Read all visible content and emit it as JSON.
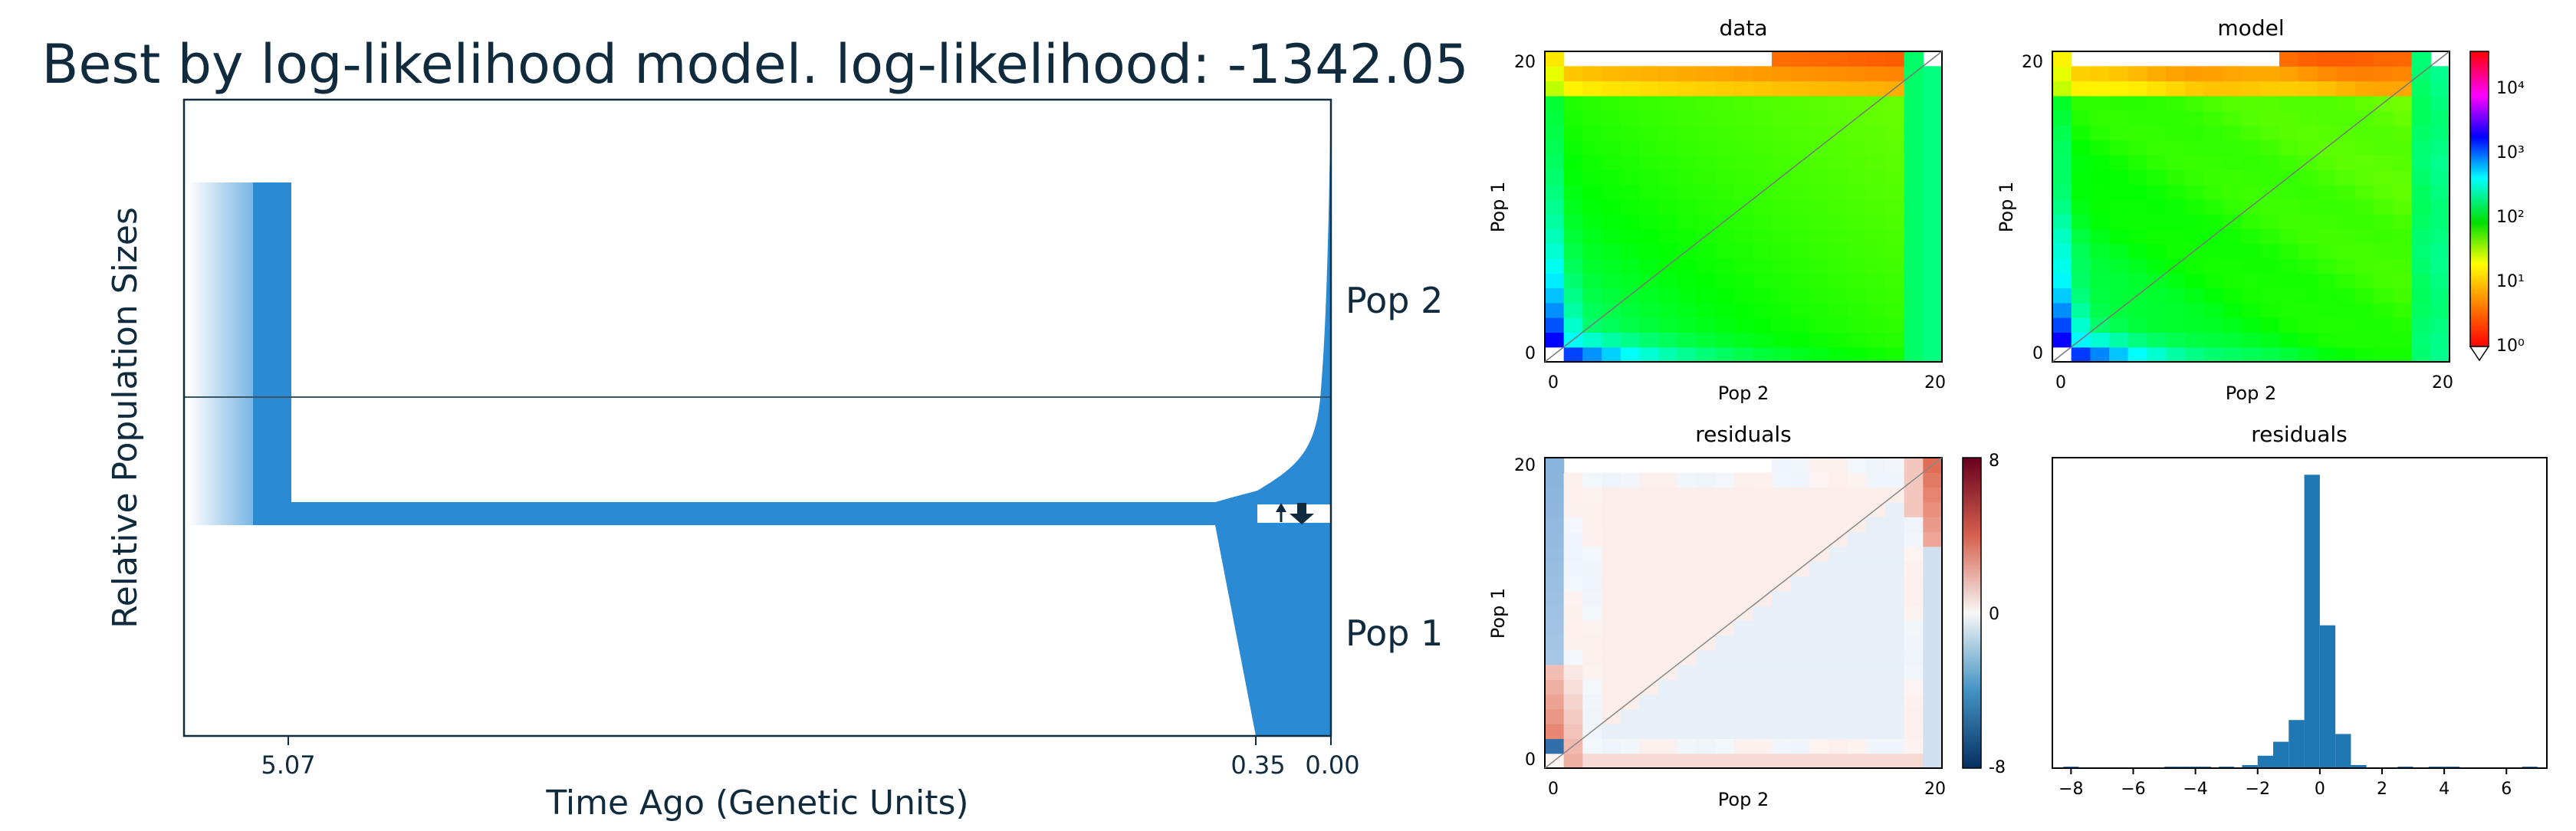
{
  "demography": {
    "title": "Best by log-likelihood model. log-likelihood: -1342.05",
    "xlabel": "Time Ago (Genetic Units)",
    "ylabel": "Relative Population Sizes",
    "time_ticks": [
      "5.07",
      "0.35",
      "0.00"
    ],
    "pop_labels": [
      "Pop 2",
      "Pop 1"
    ],
    "fill_color": "#2a8ad4",
    "axis_color": "#0f2b3d"
  },
  "panels": {
    "data_title": "data",
    "model_title": "model",
    "residuals_title": "residuals",
    "hist_title": "residuals",
    "xlabel": "Pop 2",
    "ylabel": "Pop 1",
    "tick_min": "0",
    "tick_max": "20"
  },
  "colorbars": {
    "sfs_ticks": [
      "10⁴",
      "10³",
      "10²",
      "10¹",
      "10⁰"
    ],
    "resid_ticks": [
      "8",
      "0",
      "-8"
    ]
  },
  "chart_data": [
    {
      "type": "area",
      "title": "Best by log-likelihood model. log-likelihood: -1342.05",
      "xlabel": "Time Ago (Genetic Units)",
      "ylabel": "Relative Population Sizes",
      "x_ticks": [
        5.07,
        0.35,
        0.0
      ],
      "series": [
        {
          "name": "Pop 2"
        },
        {
          "name": "Pop 1"
        }
      ]
    },
    {
      "type": "heatmap",
      "title": "data",
      "xlabel": "Pop 2",
      "ylabel": "Pop 1",
      "xlim": [
        0,
        20
      ],
      "ylim": [
        0,
        20
      ],
      "colorscale": "log",
      "color_range": [
        1,
        30000
      ]
    },
    {
      "type": "heatmap",
      "title": "model",
      "xlabel": "Pop 2",
      "ylabel": "Pop 1",
      "xlim": [
        0,
        20
      ],
      "ylim": [
        0,
        20
      ],
      "colorscale": "log",
      "color_range": [
        1,
        30000
      ]
    },
    {
      "type": "heatmap",
      "title": "residuals",
      "xlabel": "Pop 2",
      "ylabel": "Pop 1",
      "xlim": [
        0,
        20
      ],
      "ylim": [
        0,
        20
      ],
      "color_range": [
        -8,
        8
      ]
    },
    {
      "type": "bar",
      "title": "residuals",
      "x_ticks": [
        -8,
        -6,
        -4,
        -2,
        0,
        2,
        4,
        6
      ],
      "bin_width": 0.5,
      "bins": [
        {
          "x": -8.0,
          "count": 1
        },
        {
          "x": -4.75,
          "count": 1
        },
        {
          "x": -4.25,
          "count": 1
        },
        {
          "x": -3.75,
          "count": 1
        },
        {
          "x": -3.0,
          "count": 1
        },
        {
          "x": -2.25,
          "count": 2
        },
        {
          "x": -1.75,
          "count": 8
        },
        {
          "x": -1.25,
          "count": 17
        },
        {
          "x": -0.75,
          "count": 31
        },
        {
          "x": -0.25,
          "count": 189
        },
        {
          "x": 0.25,
          "count": 92
        },
        {
          "x": 0.75,
          "count": 22
        },
        {
          "x": 1.25,
          "count": 2
        },
        {
          "x": 2.75,
          "count": 1
        },
        {
          "x": 3.75,
          "count": 1
        },
        {
          "x": 4.25,
          "count": 1
        },
        {
          "x": 6.75,
          "count": 1
        }
      ]
    }
  ]
}
